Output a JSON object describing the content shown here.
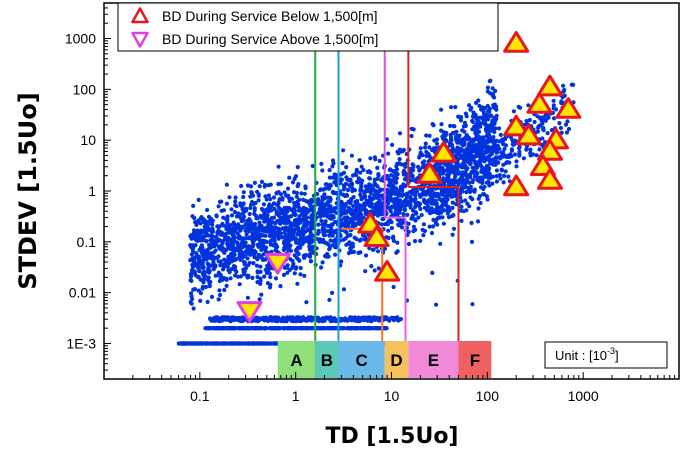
{
  "chart_data": {
    "type": "scatter",
    "xlabel": "TD [1.5Uo]",
    "ylabel": "STDEV [1.5Uo]",
    "x_scale": "log",
    "y_scale": "log",
    "xlim": [
      0.01,
      10000
    ],
    "ylim": [
      0.0002,
      5000
    ],
    "x_ticks": [
      {
        "v": 0.1,
        "label": "0.1"
      },
      {
        "v": 1,
        "label": "1"
      },
      {
        "v": 10,
        "label": "10"
      },
      {
        "v": 100,
        "label": "100"
      },
      {
        "v": 1000,
        "label": "1000"
      }
    ],
    "y_ticks": [
      {
        "v": 0.001,
        "label": "1E-3"
      },
      {
        "v": 0.01,
        "label": "0.01"
      },
      {
        "v": 0.1,
        "label": "0.1"
      },
      {
        "v": 1,
        "label": "1"
      },
      {
        "v": 10,
        "label": "10"
      },
      {
        "v": 100,
        "label": "100"
      },
      {
        "v": 1000,
        "label": "1000"
      }
    ],
    "legend_position": "top-left",
    "unit_label": "Unit : [10",
    "unit_exp": "-3",
    "unit_close": "]",
    "series": [
      {
        "name": "BD During Service Below 1,500[m]",
        "marker": "triangle-up",
        "fill": "#ffe600",
        "stroke": "#e8141e",
        "points": [
          [
            6,
            0.22
          ],
          [
            7,
            0.12
          ],
          [
            9,
            0.025
          ],
          [
            25,
            2.1
          ],
          [
            35,
            5.5
          ],
          [
            200,
            800
          ],
          [
            200,
            18
          ],
          [
            270,
            12
          ],
          [
            350,
            50
          ],
          [
            450,
            110
          ],
          [
            700,
            40
          ],
          [
            520,
            10
          ],
          [
            450,
            6
          ],
          [
            380,
            3
          ],
          [
            200,
            1.2
          ],
          [
            450,
            1.6
          ]
        ]
      },
      {
        "name": "BD During Service Above 1,500[m]",
        "marker": "triangle-down",
        "fill": "#ffe600",
        "stroke": "#e040e0",
        "points": [
          [
            0.65,
            0.04
          ],
          [
            0.33,
            0.0045
          ]
        ]
      },
      {
        "name": "",
        "marker": "dot",
        "fill": "#0033dd",
        "note": "dense measurement cloud; individual points not legible",
        "points": [
          [
            0.06,
            0.001
          ],
          [
            0.1,
            0.001
          ],
          [
            0.2,
            0.0013
          ],
          [
            0.15,
            0.08
          ],
          [
            1,
            0.3
          ],
          [
            3,
            0.5
          ],
          [
            10,
            1
          ],
          [
            30,
            3
          ],
          [
            100,
            20
          ],
          [
            300,
            100
          ],
          [
            700,
            1000
          ],
          [
            0.5,
            0.02
          ],
          [
            2,
            0.08
          ],
          [
            5,
            0.2
          ]
        ]
      }
    ],
    "boundaries": [
      {
        "x": 1.6,
        "color": "#22aa44",
        "y_top": 5000
      },
      {
        "x": 2.8,
        "color": "#1aa0e0",
        "y_top": 5000
      },
      {
        "x": 8.5,
        "color": "#e050e0",
        "y_top": 5000,
        "step_x": 14,
        "step_y": 0.3,
        "step_color": "#ee60e0"
      },
      {
        "x": 15,
        "color": "#dd2020",
        "y_top": 5000,
        "step_x": 50,
        "step_y": 1.2,
        "step_color": "#dd2020"
      },
      {
        "x": 3,
        "color": "#f07820",
        "y_top": 0.18,
        "step_x": 8,
        "step_y": 0.18,
        "step_color": "#f07820",
        "drop": true
      }
    ],
    "zones": [
      {
        "label": "A",
        "x0": 0.65,
        "x1": 1.6,
        "color": "#8fe07a"
      },
      {
        "label": "B",
        "x0": 1.6,
        "x1": 2.8,
        "color": "#5cc8b8"
      },
      {
        "label": "C",
        "x0": 2.8,
        "x1": 8.5,
        "color": "#6ab8e8"
      },
      {
        "label": "D",
        "x0": 8.5,
        "x1": 15,
        "color": "#f5c15a"
      },
      {
        "label": "E",
        "x0": 15,
        "x1": 50,
        "color": "#f08ad8"
      },
      {
        "label": "F",
        "x0": 50,
        "x1": 110,
        "color": "#f06262"
      }
    ]
  }
}
